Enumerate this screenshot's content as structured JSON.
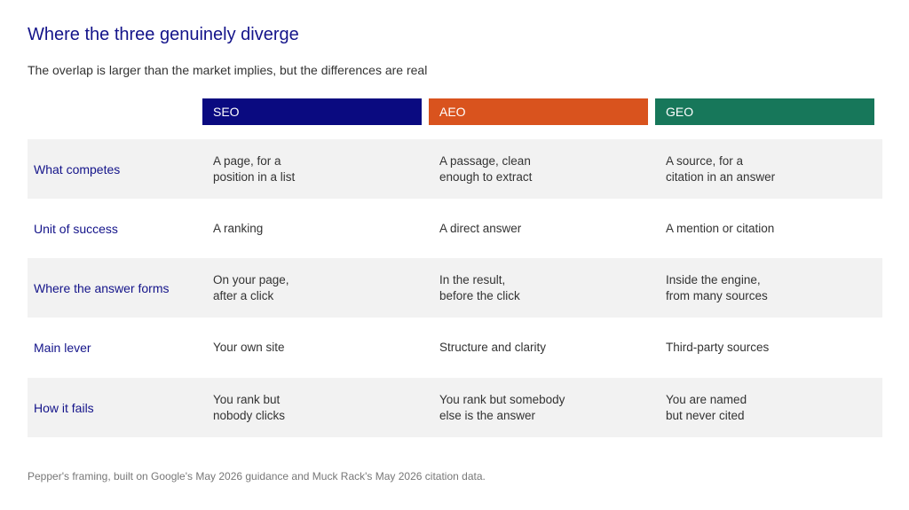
{
  "title": "Where the three genuinely diverge",
  "subtitle": "The overlap is larger than the market implies, but the differences are real",
  "columns": [
    {
      "label": "SEO",
      "color": "#0a0a80"
    },
    {
      "label": "AEO",
      "color": "#d9531e"
    },
    {
      "label": "GEO",
      "color": "#17775a"
    }
  ],
  "rows": [
    {
      "label": "What competes",
      "cells": [
        "A page, for a\nposition in a list",
        "A passage, clean\nenough to extract",
        "A source, for a\ncitation in an answer"
      ]
    },
    {
      "label": "Unit of success",
      "cells": [
        "A ranking",
        "A direct answer",
        "A mention or citation"
      ]
    },
    {
      "label": "Where the answer forms",
      "cells": [
        "On your page,\nafter a click",
        "In the result,\nbefore the click",
        "Inside the engine,\nfrom many sources"
      ]
    },
    {
      "label": "Main lever",
      "cells": [
        "Your own site",
        "Structure and clarity",
        "Third-party sources"
      ]
    },
    {
      "label": "How it fails",
      "cells": [
        "You rank but\nnobody clicks",
        "You rank but somebody\nelse is the answer",
        "You are named\nbut never cited"
      ]
    }
  ],
  "footnote": "Pepper's framing, built on Google's May 2026 guidance and Muck Rack's May 2026 citation data."
}
